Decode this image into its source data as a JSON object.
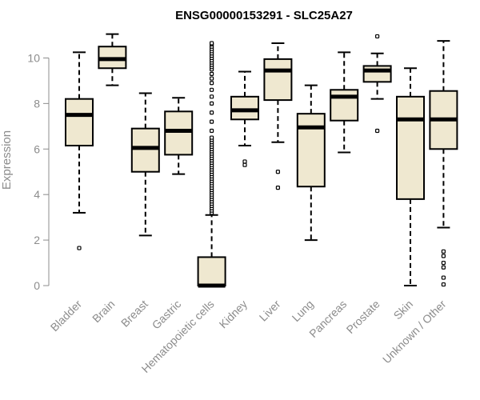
{
  "chart_data": {
    "type": "boxplot",
    "title": "ENSG00000153291 - SLC25A27",
    "ylabel": "Expression",
    "xlabel": "",
    "ylim": [
      0,
      11
    ],
    "yticks": [
      0,
      2,
      4,
      6,
      8,
      10
    ],
    "grid": false,
    "box_fill": "#efe8d0",
    "categories": [
      "Bladder",
      "Brain",
      "Breast",
      "Gastric",
      "Hematopoietic cells",
      "Kidney",
      "Liver",
      "Lung",
      "Pancreas",
      "Prostate",
      "Skin",
      "Unknown / Other"
    ],
    "boxes": [
      {
        "whisker_low": 3.2,
        "q1": 6.15,
        "median": 7.5,
        "q3": 8.2,
        "whisker_high": 10.25,
        "outliers": [
          1.65
        ]
      },
      {
        "whisker_low": 8.8,
        "q1": 9.55,
        "median": 9.95,
        "q3": 10.5,
        "whisker_high": 11.05,
        "outliers": []
      },
      {
        "whisker_low": 2.2,
        "q1": 5.0,
        "median": 6.05,
        "q3": 6.9,
        "whisker_high": 8.45,
        "outliers": []
      },
      {
        "whisker_low": 4.9,
        "q1": 5.75,
        "median": 6.8,
        "q3": 7.65,
        "whisker_high": 8.25,
        "outliers": []
      },
      {
        "whisker_low": 0.0,
        "q1": 0.0,
        "median": 0.0,
        "q3": 1.25,
        "whisker_high": 3.1,
        "outliers": [
          3.2,
          3.3,
          3.4,
          3.5,
          3.6,
          3.7,
          3.8,
          3.9,
          4.0,
          4.1,
          4.2,
          4.3,
          4.4,
          4.5,
          4.6,
          4.7,
          4.8,
          4.9,
          5.0,
          5.1,
          5.2,
          5.3,
          5.4,
          5.5,
          5.6,
          5.7,
          5.8,
          5.9,
          6.0,
          6.1,
          6.2,
          6.3,
          6.4,
          6.5,
          6.8,
          7.2,
          7.6,
          8.0,
          8.3,
          8.6,
          8.9,
          9.1,
          9.3,
          9.5,
          9.6,
          9.7,
          9.8,
          9.9,
          10.0,
          10.1,
          10.2,
          10.3,
          10.4,
          10.5,
          10.6,
          10.65
        ]
      },
      {
        "whisker_low": 6.15,
        "q1": 7.3,
        "median": 7.7,
        "q3": 8.3,
        "whisker_high": 9.4,
        "outliers": [
          5.45,
          5.3
        ]
      },
      {
        "whisker_low": 6.3,
        "q1": 8.15,
        "median": 9.45,
        "q3": 9.95,
        "whisker_high": 10.65,
        "outliers": [
          5.0,
          4.3
        ]
      },
      {
        "whisker_low": 2.0,
        "q1": 4.35,
        "median": 6.95,
        "q3": 7.55,
        "whisker_high": 8.8,
        "outliers": []
      },
      {
        "whisker_low": 5.85,
        "q1": 7.25,
        "median": 8.3,
        "q3": 8.6,
        "whisker_high": 10.25,
        "outliers": []
      },
      {
        "whisker_low": 8.2,
        "q1": 8.95,
        "median": 9.45,
        "q3": 9.65,
        "whisker_high": 10.2,
        "outliers": [
          10.95,
          6.8
        ]
      },
      {
        "whisker_low": 0.0,
        "q1": 3.8,
        "median": 7.3,
        "q3": 8.3,
        "whisker_high": 9.55,
        "outliers": []
      },
      {
        "whisker_low": 2.55,
        "q1": 6.0,
        "median": 7.3,
        "q3": 8.55,
        "whisker_high": 10.75,
        "outliers": [
          1.5,
          1.3,
          1.0,
          0.8,
          0.35,
          0.05
        ]
      }
    ]
  }
}
